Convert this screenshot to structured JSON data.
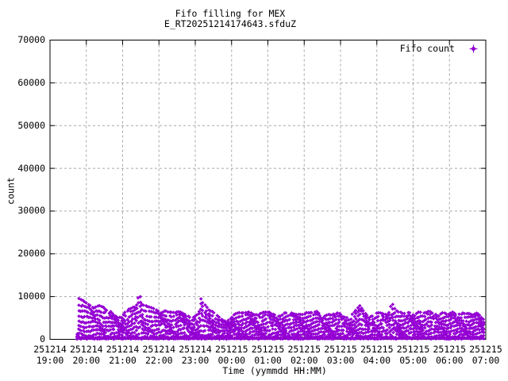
{
  "colors": {
    "points": "#9400D3",
    "grid": "#a8a8a8",
    "border": "#000000",
    "background": "#ffffff",
    "text": "#000000"
  },
  "chart_data": {
    "type": "scatter",
    "title": "Fifo filling for MEX",
    "subtitle": "E_RT20251214174643.sfduZ",
    "xlabel": "Time (yymmdd HH:MM)",
    "ylabel": "count",
    "ylim": [
      0,
      70000
    ],
    "grid": true,
    "legend_position": "top-right-inside",
    "y_tick_labels": [
      "0",
      "10000",
      "20000",
      "30000",
      "40000",
      "50000",
      "60000",
      "70000"
    ],
    "x_tick_labels": [
      {
        "date": "251214",
        "time": "19:00"
      },
      {
        "date": "251214",
        "time": "20:00"
      },
      {
        "date": "251214",
        "time": "21:00"
      },
      {
        "date": "251214",
        "time": "22:00"
      },
      {
        "date": "251214",
        "time": "23:00"
      },
      {
        "date": "251215",
        "time": "00:00"
      },
      {
        "date": "251215",
        "time": "01:00"
      },
      {
        "date": "251215",
        "time": "02:00"
      },
      {
        "date": "251215",
        "time": "03:00"
      },
      {
        "date": "251215",
        "time": "04:00"
      },
      {
        "date": "251215",
        "time": "05:00"
      },
      {
        "date": "251215",
        "time": "06:00"
      },
      {
        "date": "251215",
        "time": "07:00"
      }
    ],
    "series": [
      {
        "name": "Fifo count",
        "marker": "filled-diamond",
        "color": "#9400D3",
        "shape": "dense scatter band of wavy strands from 0 up to a time-varying envelope",
        "data_start": "251214 19:45",
        "data_end": "251215 06:58",
        "spikes": [
          {
            "time": "251214 21:28",
            "count": 11600
          },
          {
            "time": "251214 23:10",
            "count": 10100
          },
          {
            "time": "251215 04:26",
            "count": 9200
          }
        ],
        "envelope_points": [
          [
            45,
            700
          ],
          [
            47,
            9700
          ],
          [
            52,
            9300
          ],
          [
            58,
            8800
          ],
          [
            65,
            8300
          ],
          [
            72,
            7900
          ],
          [
            80,
            8300
          ],
          [
            88,
            7500
          ],
          [
            95,
            6900
          ],
          [
            103,
            6300
          ],
          [
            110,
            5800
          ],
          [
            118,
            5300
          ],
          [
            126,
            6700
          ],
          [
            134,
            7400
          ],
          [
            142,
            8000
          ],
          [
            148,
            11600
          ],
          [
            151,
            8700
          ],
          [
            158,
            8100
          ],
          [
            166,
            7500
          ],
          [
            174,
            7000
          ],
          [
            182,
            6700
          ],
          [
            190,
            7100
          ],
          [
            198,
            6600
          ],
          [
            206,
            6200
          ],
          [
            214,
            6700
          ],
          [
            222,
            6200
          ],
          [
            230,
            5700
          ],
          [
            238,
            5200
          ],
          [
            246,
            6100
          ],
          [
            250,
            10100
          ],
          [
            253,
            8700
          ],
          [
            260,
            7700
          ],
          [
            268,
            6800
          ],
          [
            276,
            5700
          ],
          [
            284,
            4700
          ],
          [
            292,
            4100
          ],
          [
            300,
            5500
          ],
          [
            308,
            6500
          ],
          [
            320,
            6200
          ],
          [
            332,
            6600
          ],
          [
            344,
            6100
          ],
          [
            356,
            6500
          ],
          [
            368,
            6200
          ],
          [
            380,
            5900
          ],
          [
            392,
            6400
          ],
          [
            404,
            6100
          ],
          [
            416,
            6500
          ],
          [
            428,
            6200
          ],
          [
            440,
            6600
          ],
          [
            452,
            6100
          ],
          [
            464,
            5800
          ],
          [
            476,
            6200
          ],
          [
            488,
            5600
          ],
          [
            500,
            6000
          ],
          [
            512,
            7900
          ],
          [
            520,
            6500
          ],
          [
            528,
            5600
          ],
          [
            536,
            6000
          ],
          [
            544,
            6300
          ],
          [
            552,
            5900
          ],
          [
            560,
            6500
          ],
          [
            566,
            9200
          ],
          [
            571,
            7100
          ],
          [
            578,
            6400
          ],
          [
            586,
            6000
          ],
          [
            594,
            6500
          ],
          [
            602,
            6100
          ],
          [
            610,
            6600
          ],
          [
            618,
            6200
          ],
          [
            626,
            6700
          ],
          [
            634,
            6300
          ],
          [
            642,
            5900
          ],
          [
            650,
            6400
          ],
          [
            658,
            6000
          ],
          [
            666,
            6500
          ],
          [
            674,
            6100
          ],
          [
            682,
            6600
          ],
          [
            690,
            6200
          ],
          [
            698,
            5800
          ],
          [
            706,
            6300
          ],
          [
            714,
            5600
          ],
          [
            718,
            4800
          ]
        ]
      }
    ]
  }
}
